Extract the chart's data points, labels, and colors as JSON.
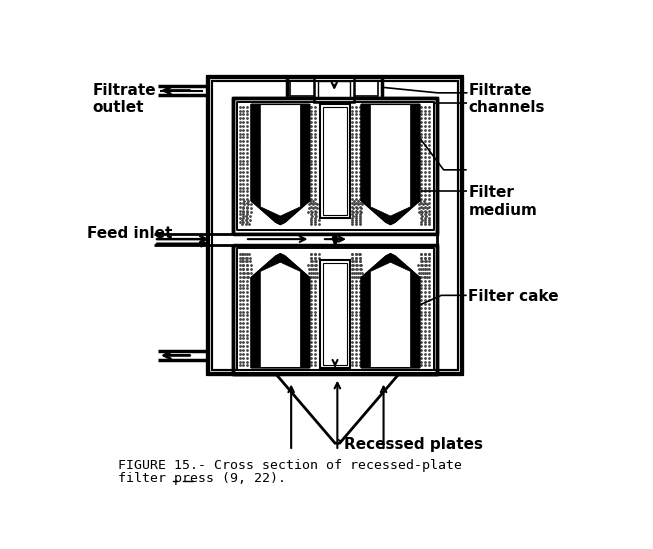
{
  "title_line1": "FIGURE 15.- Cross section of recessed-plate",
  "title_line2": "filter press (9, 22).",
  "labels": {
    "filtrate_outlet": "Filtrate\noutlet",
    "filtrate_channels": "Filtrate\nchannels",
    "feed_inlet": "Feed inlet",
    "filter_medium": "Filter\nmedium",
    "filter_cake": "Filter cake",
    "recessed_plates": "Recessed plates"
  },
  "underline_refs": [
    true,
    true
  ],
  "bg_color": "#ffffff"
}
